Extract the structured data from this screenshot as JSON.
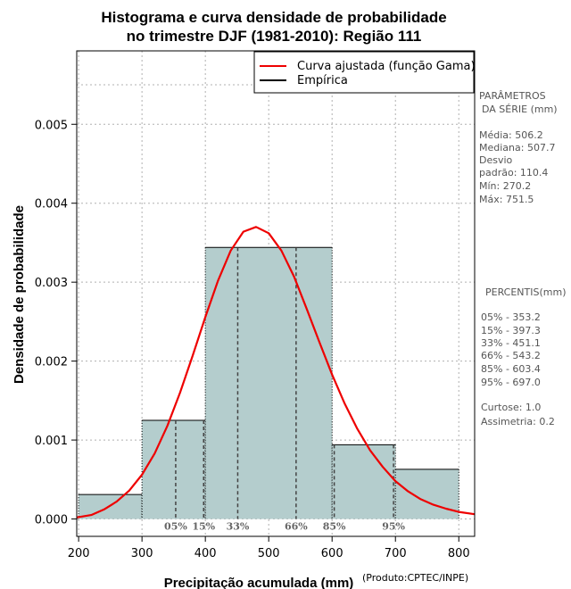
{
  "chart_data": {
    "type": "bar",
    "title_line1": "Histograma e curva densidade de probabilidade",
    "title_line2": "no trimestre DJF (1981-2010): Região 111",
    "xlabel": "Precipitação acumulada (mm)",
    "ylabel": "Densidade de probabilidade",
    "credit": "(Produto:CPTEC/INPE)",
    "xlim": [
      197,
      825
    ],
    "ylim": [
      -0.00022,
      0.00593
    ],
    "xticks": [
      "200",
      "300",
      "400",
      "500",
      "600",
      "700",
      "800"
    ],
    "yticks": [
      "0.000",
      "0.001",
      "0.002",
      "0.003",
      "0.004",
      "0.005"
    ],
    "xtick_values": [
      200,
      300,
      400,
      500,
      600,
      700,
      800
    ],
    "ytick_values": [
      0,
      0.001,
      0.002,
      0.003,
      0.004,
      0.005
    ],
    "bins": [
      {
        "x0": 200,
        "x1": 300,
        "density": 0.00031
      },
      {
        "x0": 300,
        "x1": 400,
        "density": 0.00125
      },
      {
        "x0": 400,
        "x1": 600,
        "density": 0.00344
      },
      {
        "x0": 600,
        "x1": 700,
        "density": 0.00094
      },
      {
        "x0": 700,
        "x1": 800,
        "density": 0.00063
      }
    ],
    "fitted_curve": {
      "name": "Curva ajustada (função Gama)",
      "x": [
        197,
        220,
        240,
        260,
        280,
        300,
        320,
        340,
        360,
        380,
        400,
        420,
        440,
        460,
        480,
        500,
        520,
        540,
        560,
        580,
        600,
        620,
        640,
        660,
        680,
        700,
        720,
        740,
        760,
        780,
        800,
        825
      ],
      "y": [
        2e-05,
        5e-05,
        0.00012,
        0.00022,
        0.00036,
        0.00056,
        0.00083,
        0.00118,
        0.0016,
        0.00207,
        0.00256,
        0.00302,
        0.0034,
        0.00364,
        0.0037,
        0.00362,
        0.0034,
        0.00307,
        0.00266,
        0.00224,
        0.00183,
        0.00146,
        0.00114,
        0.00087,
        0.00066,
        0.00048,
        0.00035,
        0.00025,
        0.00018,
        0.00013,
        9e-05,
        6e-05
      ]
    },
    "legend": [
      {
        "label": "Curva ajustada (função Gama)",
        "color": "#ee0000"
      },
      {
        "label": "Empírica",
        "color": "#000000"
      }
    ],
    "percentile_lines": [
      {
        "label": "05%",
        "value": 353.2
      },
      {
        "label": "15%",
        "value": 397.3
      },
      {
        "label": "33%",
        "value": 451.1
      },
      {
        "label": "66%",
        "value": 543.2
      },
      {
        "label": "85%",
        "value": 603.4
      },
      {
        "label": "95%",
        "value": 697.0
      }
    ],
    "colors": {
      "bar_fill": "#b4cdcd",
      "curve": "#ee0000",
      "grid": "#b0b0b0"
    }
  },
  "side_panel": {
    "params_title_1": "PARÂMETROS",
    "params_title_2": "DA SÉRIE (mm)",
    "media": "Média:  506.2",
    "mediana": "Mediana:  507.7",
    "desvio_1": "Desvio",
    "desvio_2": "padrão:  110.4",
    "min": "Mín:  270.2",
    "max": "Máx:  751.5",
    "percentis_title": "PERCENTIS(mm)",
    "p05": "05% -   353.2",
    "p15": "15% -   397.3",
    "p33": "33% -   451.1",
    "p66": "66% -   543.2",
    "p85": "85% -   603.4",
    "p95": "95% -   697.0",
    "curtose": "Curtose:  1.0",
    "assimetria": "Assimetria:  0.2"
  }
}
